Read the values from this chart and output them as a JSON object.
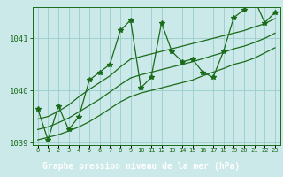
{
  "title": "Graphe pression niveau de la mer (hPa)",
  "x_labels": [
    "0",
    "1",
    "2",
    "3",
    "4",
    "5",
    "6",
    "7",
    "8",
    "9",
    "10",
    "11",
    "12",
    "13",
    "14",
    "15",
    "16",
    "17",
    "18",
    "19",
    "20",
    "21",
    "22",
    "23"
  ],
  "x_values": [
    0,
    1,
    2,
    3,
    4,
    5,
    6,
    7,
    8,
    9,
    10,
    11,
    12,
    13,
    14,
    15,
    16,
    17,
    18,
    19,
    20,
    21,
    22,
    23
  ],
  "main_data": [
    1039.65,
    1039.05,
    1039.7,
    1039.25,
    1039.5,
    1040.2,
    1040.35,
    1040.5,
    1041.15,
    1041.35,
    1040.05,
    1040.25,
    1041.3,
    1040.75,
    1040.55,
    1040.6,
    1040.35,
    1040.25,
    1040.75,
    1041.4,
    1041.55,
    1041.75,
    1041.3,
    1041.5
  ],
  "smooth_low": [
    1039.05,
    1039.1,
    1039.15,
    1039.22,
    1039.3,
    1039.4,
    1039.52,
    1039.65,
    1039.78,
    1039.88,
    1039.95,
    1040.0,
    1040.05,
    1040.1,
    1040.15,
    1040.2,
    1040.28,
    1040.35,
    1040.42,
    1040.5,
    1040.55,
    1040.62,
    1040.72,
    1040.82
  ],
  "smooth_high": [
    1039.45,
    1039.5,
    1039.6,
    1039.72,
    1039.88,
    1040.02,
    1040.15,
    1040.28,
    1040.45,
    1040.6,
    1040.65,
    1040.7,
    1040.75,
    1040.8,
    1040.85,
    1040.9,
    1040.95,
    1041.0,
    1041.05,
    1041.1,
    1041.15,
    1041.22,
    1041.28,
    1041.38
  ],
  "smooth_mid": [
    1039.25,
    1039.3,
    1039.38,
    1039.47,
    1039.59,
    1039.71,
    1039.83,
    1039.97,
    1040.11,
    1040.24,
    1040.3,
    1040.35,
    1040.4,
    1040.45,
    1040.5,
    1040.55,
    1040.61,
    1040.67,
    1040.73,
    1040.8,
    1040.85,
    1040.92,
    1041.0,
    1041.1
  ],
  "ylim": [
    1038.95,
    1041.6
  ],
  "yticks": [
    1039,
    1040,
    1041
  ],
  "bg_color": "#cce9e9",
  "line_color": "#1a6b1a",
  "grid_color": "#99cccc",
  "title_bg": "#2d7a2d",
  "title_fg": "#ffffff",
  "marker": "*",
  "marker_size": 4,
  "line_width": 0.9
}
